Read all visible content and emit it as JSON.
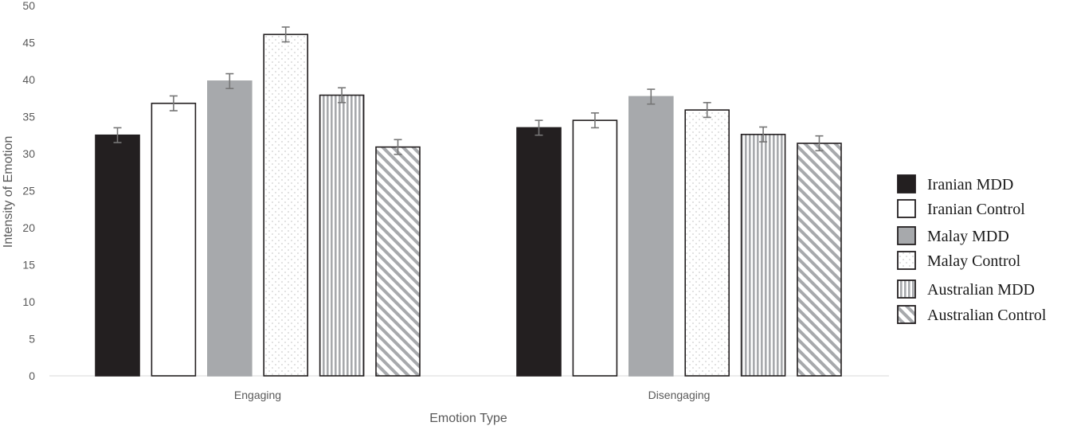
{
  "chart_data": {
    "type": "bar",
    "xlabel": "Emotion Type",
    "ylabel": "Intensity of Emotion",
    "ylim": [
      0,
      50
    ],
    "yticks": [
      0,
      5,
      10,
      15,
      20,
      25,
      30,
      35,
      40,
      45,
      50
    ],
    "categories": [
      "Engaging",
      "Disengaging"
    ],
    "grid": false,
    "legend_position": "right",
    "series": [
      {
        "name": "Iranian MDD",
        "pattern": "solid-black",
        "color": "#231f20",
        "values": [
          32.5,
          33.5
        ],
        "errors": [
          1.0,
          1.0
        ]
      },
      {
        "name": "Iranian Control",
        "pattern": "solid-white",
        "color": "#ffffff",
        "values": [
          36.8,
          34.5
        ],
        "errors": [
          1.0,
          1.0
        ]
      },
      {
        "name": "Malay MDD",
        "pattern": "solid-gray",
        "color": "#a7a9ac",
        "values": [
          39.8,
          37.7
        ],
        "errors": [
          1.0,
          1.0
        ]
      },
      {
        "name": "Malay Control",
        "pattern": "dots",
        "color": "#ffffff",
        "values": [
          46.1,
          35.9
        ],
        "errors": [
          1.0,
          1.0
        ]
      },
      {
        "name": "Australian MDD",
        "pattern": "vertical-lines",
        "color": "#a7a9ac",
        "values": [
          37.9,
          32.6
        ],
        "errors": [
          1.0,
          1.0
        ]
      },
      {
        "name": "Australian Control",
        "pattern": "diagonal-lines",
        "color": "#a7a9ac",
        "values": [
          30.9,
          31.4
        ],
        "errors": [
          1.0,
          1.0
        ]
      }
    ]
  }
}
